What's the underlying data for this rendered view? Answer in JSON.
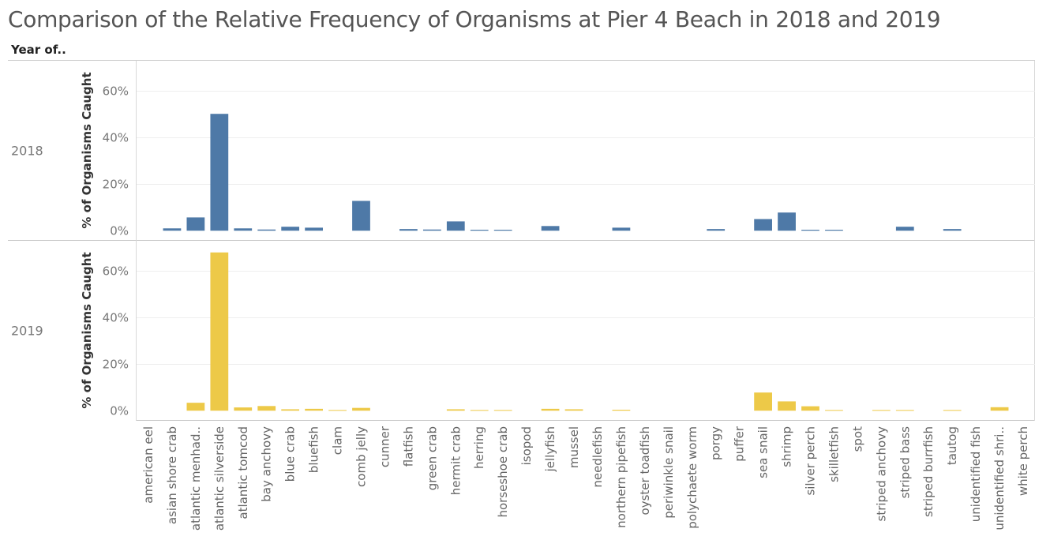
{
  "title": "Comparison of the Relative Frequency of Organisms at Pier 4 Beach in 2018 and 2019",
  "row_header": "Year of..",
  "chart_data": {
    "type": "bar",
    "title": "Comparison of the Relative Frequency of Organisms at Pier 4 Beach in 2018 and 2019",
    "ylabel": "% of Organisms Caught",
    "xlabel": "",
    "ylim": [
      -4,
      73
    ],
    "yticks": [
      "0%",
      "20%",
      "40%",
      "60%"
    ],
    "ytick_values": [
      0,
      20,
      40,
      60
    ],
    "grid": true,
    "categories": [
      "american eel",
      "asian shore crab",
      "atlantic menhad..",
      "atlantic silverside",
      "atlantic tomcod",
      "bay anchovy",
      "blue crab",
      "bluefish",
      "clam",
      "comb jelly",
      "cunner",
      "flatfish",
      "green crab",
      "hermit crab",
      "herring",
      "horseshoe crab",
      "isopod",
      "jellyfish",
      "mussel",
      "needlefish",
      "northern pipefish",
      "oyster toadfish",
      "periwinkle snail",
      "polychaete worm",
      "porgy",
      "puffer",
      "sea snail",
      "shrimp",
      "silver perch",
      "skilletfish",
      "spot",
      "striped anchovy",
      "striped bass",
      "striped burrfish",
      "tautog",
      "unidentified fish",
      "unidentified shri..",
      "white perch"
    ],
    "series": [
      {
        "name": "2018",
        "color": "#4e79a7",
        "values": [
          0,
          1,
          5.7,
          50.2,
          1,
          0.5,
          1.7,
          1.3,
          0,
          12.8,
          0,
          0.7,
          0.5,
          4,
          0.4,
          0.4,
          0,
          2,
          0,
          0,
          1.3,
          0,
          0,
          0,
          0.7,
          0,
          5,
          7.8,
          0.4,
          0.4,
          0,
          0,
          1.7,
          0,
          0.7,
          0,
          0,
          0
        ]
      },
      {
        "name": "2019",
        "color": "#edc948",
        "values": [
          0,
          0,
          3.4,
          68,
          1.4,
          2,
          0.6,
          0.8,
          0.3,
          1.2,
          0,
          0,
          0,
          0.6,
          0.3,
          0.3,
          0,
          0.8,
          0.6,
          0,
          0.4,
          0,
          0,
          0,
          0,
          0,
          7.8,
          4,
          1.9,
          0.3,
          0,
          0.3,
          0.3,
          0,
          0.3,
          0,
          1.5,
          0
        ]
      }
    ]
  }
}
